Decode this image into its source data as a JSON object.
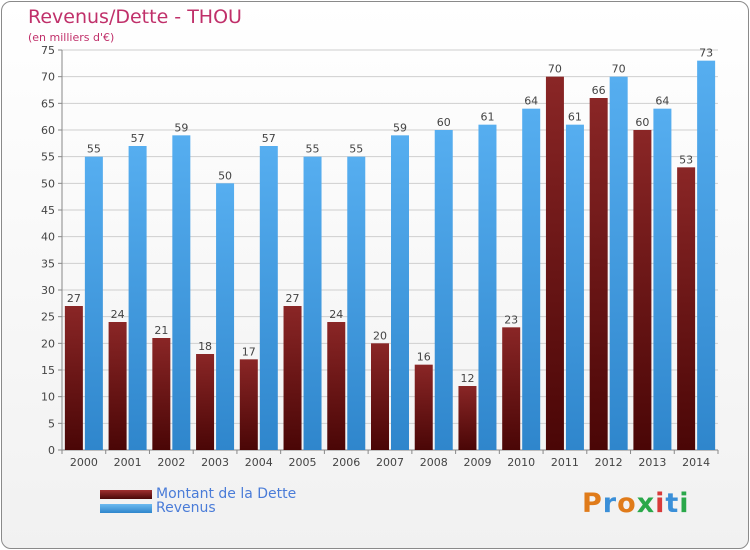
{
  "title": "Revenus/Dette - THOU",
  "subtitle": "(en milliers d'€)",
  "logo": "Proxiti",
  "colors": {
    "dette": "#7a1818",
    "revenus": "#4aa3e8",
    "grid": "#cfcfcf",
    "axis_text": "#444444",
    "title": "#c0306a",
    "legend_text": "#4a7cd8"
  },
  "chart_data": {
    "type": "bar",
    "title": "Revenus/Dette - THOU",
    "subtitle": "(en milliers d'€)",
    "categories": [
      "2000",
      "2001",
      "2002",
      "2003",
      "2004",
      "2005",
      "2006",
      "2007",
      "2008",
      "2009",
      "2010",
      "2011",
      "2012",
      "2013",
      "2014"
    ],
    "series": [
      {
        "name": "Montant de la Dette",
        "color": "#7a1818",
        "values": [
          27,
          24,
          21,
          18,
          17,
          27,
          24,
          20,
          16,
          12,
          23,
          70,
          66,
          60,
          53
        ]
      },
      {
        "name": "Revenus",
        "color": "#4aa3e8",
        "values": [
          55,
          57,
          59,
          50,
          57,
          55,
          55,
          59,
          60,
          61,
          64,
          61,
          70,
          64,
          73
        ]
      }
    ],
    "ylim": [
      0,
      75
    ],
    "yticks": [
      0,
      5,
      10,
      15,
      20,
      25,
      30,
      35,
      40,
      45,
      50,
      55,
      60,
      65,
      70,
      75
    ],
    "grid": true,
    "legend_position": "bottom-left"
  }
}
